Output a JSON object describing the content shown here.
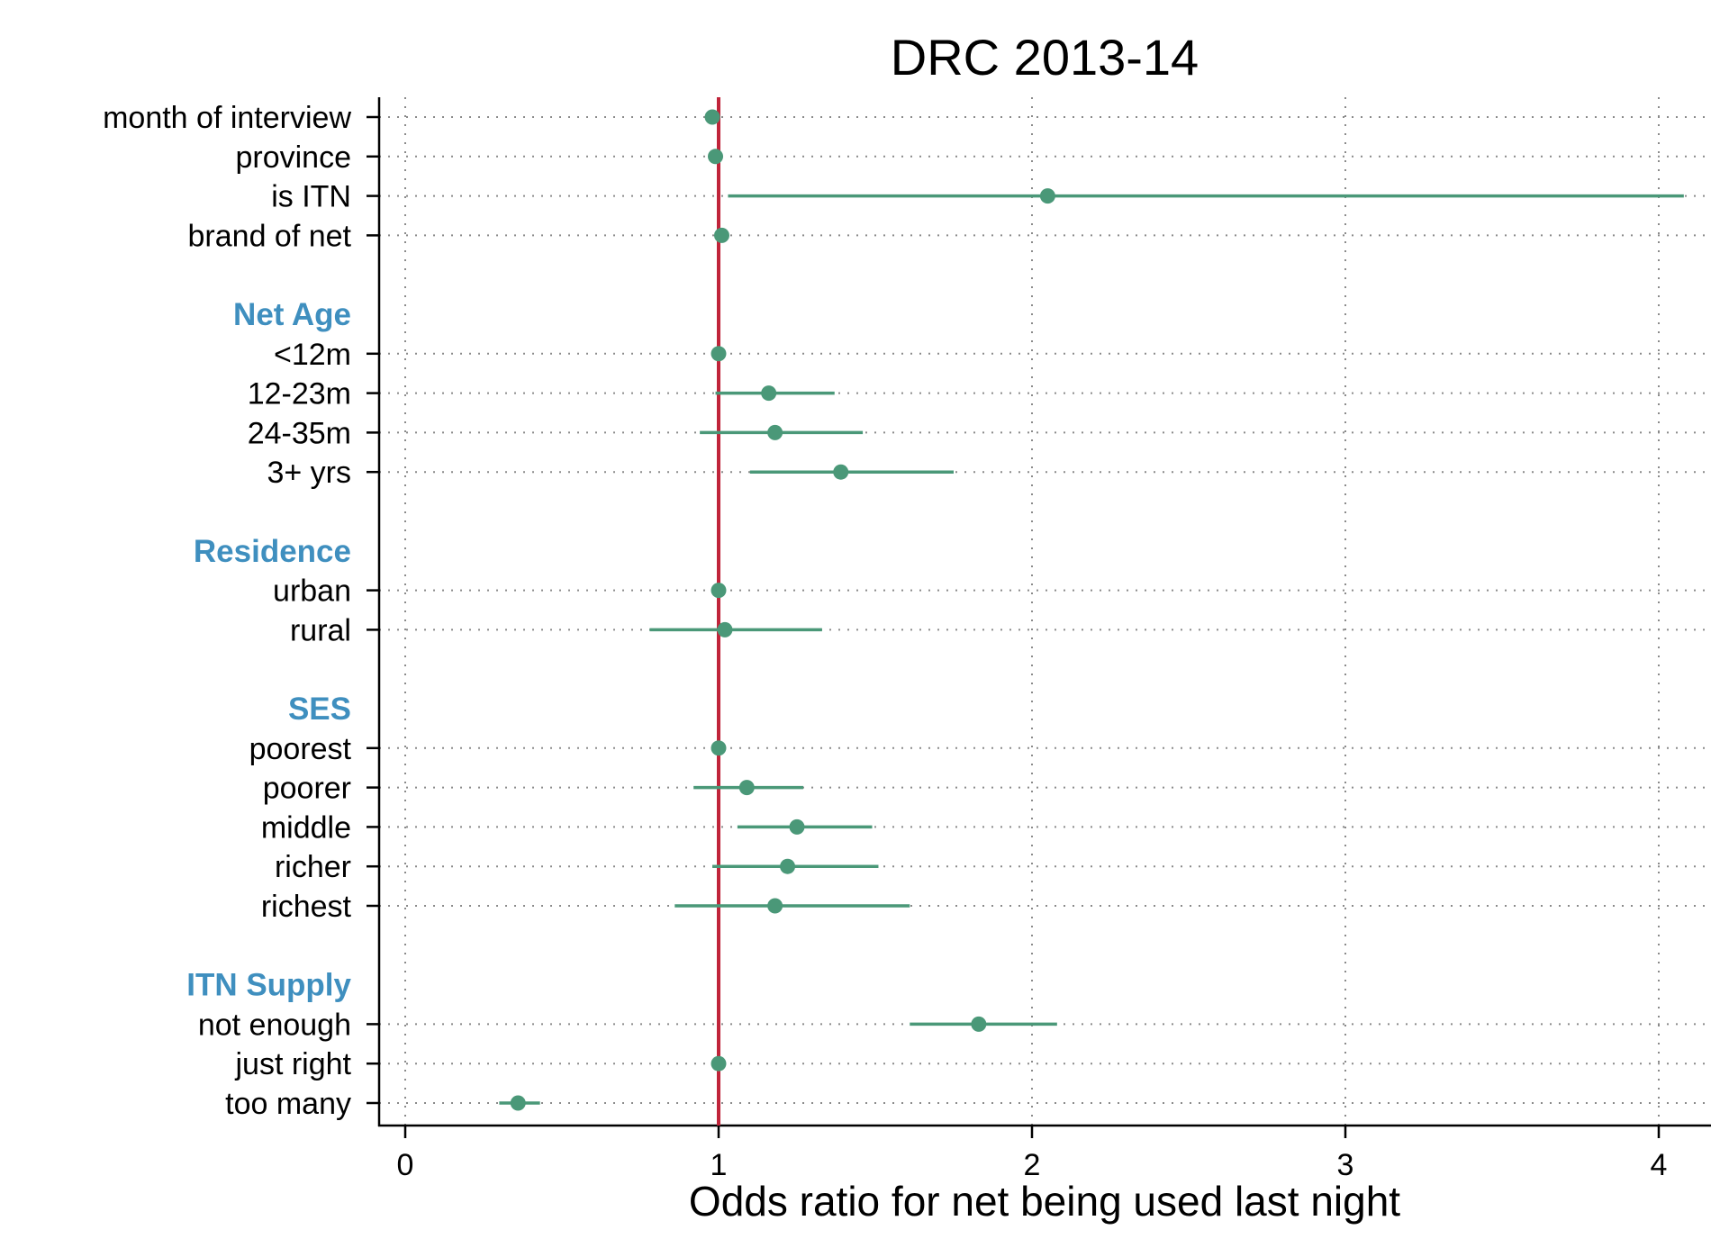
{
  "chart_data": {
    "type": "scatter",
    "subtype": "forest-plot",
    "title": "DRC 2013-14",
    "xlabel": "Odds ratio for net being used last night",
    "ylabel": "",
    "xlim": [
      0,
      4.15
    ],
    "xticks": [
      0,
      1,
      2,
      3,
      4
    ],
    "grid": "dotted",
    "reference_line": 1,
    "colors": {
      "marker": "#4a9878",
      "reference_line": "#c0243a",
      "group_label": "#3f8fbf",
      "grid": "#8a8a8a"
    },
    "rows": [
      {
        "kind": "item",
        "label": "month of interview",
        "or": 0.98,
        "lo": null,
        "hi": null
      },
      {
        "kind": "item",
        "label": "province",
        "or": 0.99,
        "lo": null,
        "hi": null
      },
      {
        "kind": "item",
        "label": "is ITN",
        "or": 2.05,
        "lo": 1.03,
        "hi": 4.08
      },
      {
        "kind": "item",
        "label": "brand of net",
        "or": 1.01,
        "lo": null,
        "hi": null
      },
      {
        "kind": "gap"
      },
      {
        "kind": "group",
        "label": "Net Age"
      },
      {
        "kind": "item",
        "label": "<12m",
        "or": 1.0,
        "lo": null,
        "hi": null
      },
      {
        "kind": "item",
        "label": "12-23m",
        "or": 1.16,
        "lo": 0.99,
        "hi": 1.37
      },
      {
        "kind": "item",
        "label": "24-35m",
        "or": 1.18,
        "lo": 0.94,
        "hi": 1.46
      },
      {
        "kind": "item",
        "label": "3+ yrs",
        "or": 1.39,
        "lo": 1.1,
        "hi": 1.75
      },
      {
        "kind": "gap"
      },
      {
        "kind": "group",
        "label": "Residence"
      },
      {
        "kind": "item",
        "label": "urban",
        "or": 1.0,
        "lo": null,
        "hi": null
      },
      {
        "kind": "item",
        "label": "rural",
        "or": 1.02,
        "lo": 0.78,
        "hi": 1.33
      },
      {
        "kind": "gap"
      },
      {
        "kind": "group",
        "label": "SES"
      },
      {
        "kind": "item",
        "label": "poorest",
        "or": 1.0,
        "lo": null,
        "hi": null
      },
      {
        "kind": "item",
        "label": "poorer",
        "or": 1.09,
        "lo": 0.92,
        "hi": 1.27
      },
      {
        "kind": "item",
        "label": "middle",
        "or": 1.25,
        "lo": 1.06,
        "hi": 1.49
      },
      {
        "kind": "item",
        "label": "richer",
        "or": 1.22,
        "lo": 0.98,
        "hi": 1.51
      },
      {
        "kind": "item",
        "label": "richest",
        "or": 1.18,
        "lo": 0.86,
        "hi": 1.61
      },
      {
        "kind": "gap"
      },
      {
        "kind": "group",
        "label": "ITN Supply"
      },
      {
        "kind": "item",
        "label": "not enough",
        "or": 1.83,
        "lo": 1.61,
        "hi": 2.08
      },
      {
        "kind": "item",
        "label": "just right",
        "or": 1.0,
        "lo": null,
        "hi": null
      },
      {
        "kind": "item",
        "label": "too many",
        "or": 0.36,
        "lo": 0.3,
        "hi": 0.43
      }
    ]
  }
}
